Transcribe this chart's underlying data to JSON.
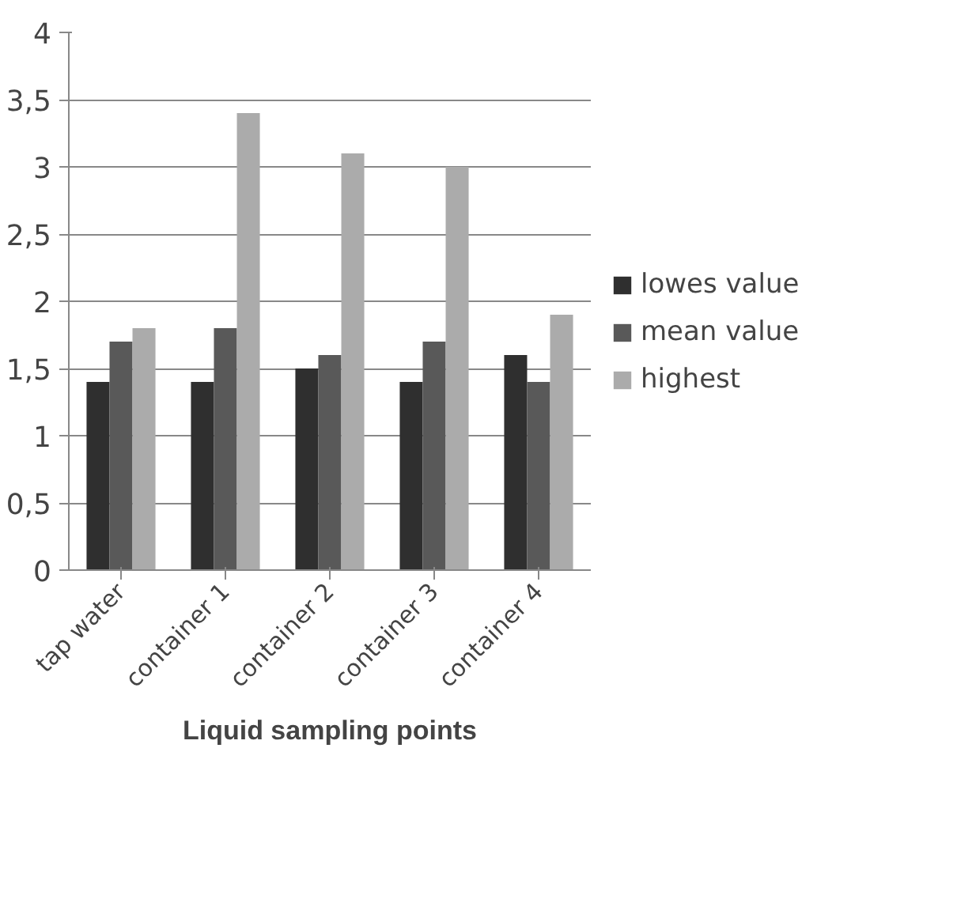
{
  "chart_data": {
    "type": "bar",
    "xlabel": "Liquid sampling points",
    "categories": [
      "tap water",
      "container 1",
      "container 2",
      "container 3",
      "container 4"
    ],
    "series": [
      {
        "name": "lowes value",
        "color": "#2f2f2f",
        "values": [
          1.4,
          1.4,
          1.5,
          1.4,
          1.6
        ]
      },
      {
        "name": "mean value",
        "color": "#595959",
        "values": [
          1.7,
          1.8,
          1.6,
          1.7,
          1.4
        ]
      },
      {
        "name": "highest",
        "color": "#ababab",
        "values": [
          1.8,
          3.4,
          3.1,
          3.0,
          1.9
        ]
      }
    ],
    "ylim": [
      0,
      4
    ],
    "yticks": [
      0,
      {
        "value": 0.5,
        "label": "0,5"
      },
      1,
      {
        "value": 1.5,
        "label": "1,5"
      },
      2,
      {
        "value": 2.5,
        "label": "2,5"
      },
      3,
      {
        "value": 3.5,
        "label": "3,5"
      },
      4
    ],
    "grid": "y",
    "legend": "right"
  }
}
